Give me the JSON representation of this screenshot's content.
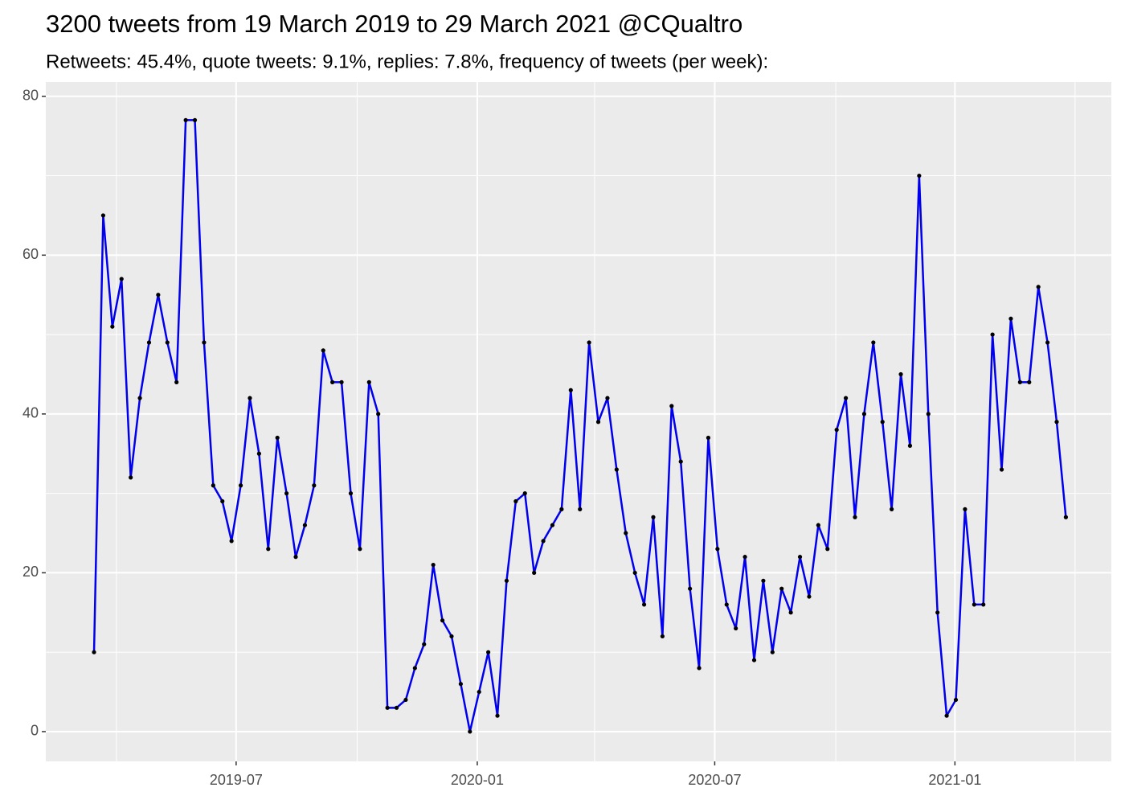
{
  "chart_data": {
    "type": "line",
    "title": "3200 tweets from 19 March 2019 to 29 March 2021 @CQualtro",
    "subtitle": "Retweets: 45.4%, quote tweets: 9.1%, replies: 7.8%, frequency of tweets (per week):",
    "x": [
      0,
      1,
      2,
      3,
      4,
      5,
      6,
      7,
      8,
      9,
      10,
      11,
      12,
      13,
      14,
      15,
      16,
      17,
      18,
      19,
      20,
      21,
      22,
      23,
      24,
      25,
      26,
      27,
      28,
      29,
      30,
      31,
      32,
      33,
      34,
      35,
      36,
      37,
      38,
      39,
      40,
      41,
      42,
      43,
      44,
      45,
      46,
      47,
      48,
      49,
      50,
      51,
      52,
      53,
      54,
      55,
      56,
      57,
      58,
      59,
      60,
      61,
      62,
      63,
      64,
      65,
      66,
      67,
      68,
      69,
      70,
      71,
      72,
      73,
      74,
      75,
      76,
      77,
      78,
      79,
      80,
      81,
      82,
      83,
      84,
      85,
      86,
      87,
      88,
      89,
      90,
      91,
      92,
      93,
      94,
      95,
      96,
      97,
      98,
      99,
      100,
      101,
      102,
      103,
      104,
      105,
      106
    ],
    "values": [
      10,
      65,
      51,
      57,
      32,
      42,
      49,
      55,
      49,
      44,
      77,
      77,
      49,
      31,
      29,
      24,
      31,
      42,
      35,
      23,
      37,
      30,
      22,
      26,
      31,
      48,
      44,
      44,
      30,
      23,
      44,
      40,
      3,
      3,
      4,
      8,
      11,
      21,
      14,
      12,
      6,
      0,
      5,
      10,
      2,
      19,
      29,
      30,
      20,
      24,
      26,
      28,
      43,
      28,
      49,
      39,
      42,
      33,
      25,
      20,
      16,
      27,
      12,
      41,
      34,
      18,
      8,
      37,
      23,
      16,
      13,
      22,
      9,
      19,
      10,
      18,
      15,
      22,
      17,
      26,
      23,
      38,
      42,
      27,
      40,
      49,
      39,
      28,
      45,
      36,
      70,
      40,
      15,
      2,
      4,
      28,
      16,
      16,
      50,
      33,
      52,
      44,
      44,
      56,
      49,
      39,
      27
    ],
    "color": "#0000ee",
    "point_color": "#000000",
    "xlim": [
      -5.26,
      110.96
    ],
    "xticks": [
      {
        "value": 15.5,
        "label": "2019-07"
      },
      {
        "value": 41.8,
        "label": "2020-01"
      },
      {
        "value": 67.7,
        "label": "2020-07"
      },
      {
        "value": 93.9,
        "label": "2021-01"
      }
    ],
    "xminorticks": [
      2.45,
      28.7,
      54.6,
      80.9,
      107.0
    ],
    "ylim": [
      -3.75,
      81.8
    ],
    "yticks": [
      0,
      20,
      40,
      60,
      80
    ],
    "yminorticks": [
      10,
      30,
      50,
      70
    ],
    "grid": true
  }
}
